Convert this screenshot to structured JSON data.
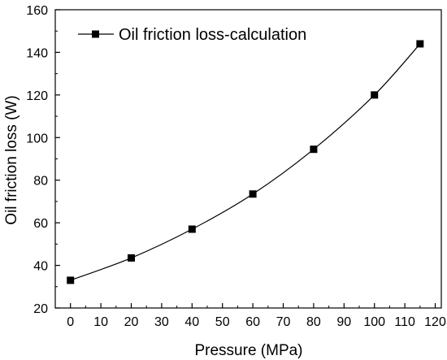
{
  "chart_data": {
    "type": "line",
    "title": "",
    "xlabel": "Pressure (MPa)",
    "ylabel": "Oil friction loss (W)",
    "xlim": [
      -5,
      122
    ],
    "ylim": [
      20,
      160
    ],
    "xticks": [
      0,
      10,
      20,
      30,
      40,
      50,
      60,
      70,
      80,
      90,
      100,
      110,
      120
    ],
    "yticks": [
      20,
      40,
      60,
      80,
      100,
      120,
      140,
      160
    ],
    "grid": false,
    "legend_position": "top-left",
    "series": [
      {
        "name": "Oil friction loss-calculation",
        "marker": "square",
        "color": "#000000",
        "x": [
          0,
          20,
          40,
          60,
          80,
          100,
          115
        ],
        "y": [
          33,
          43.5,
          57,
          73.5,
          94.5,
          120,
          144
        ]
      }
    ]
  }
}
